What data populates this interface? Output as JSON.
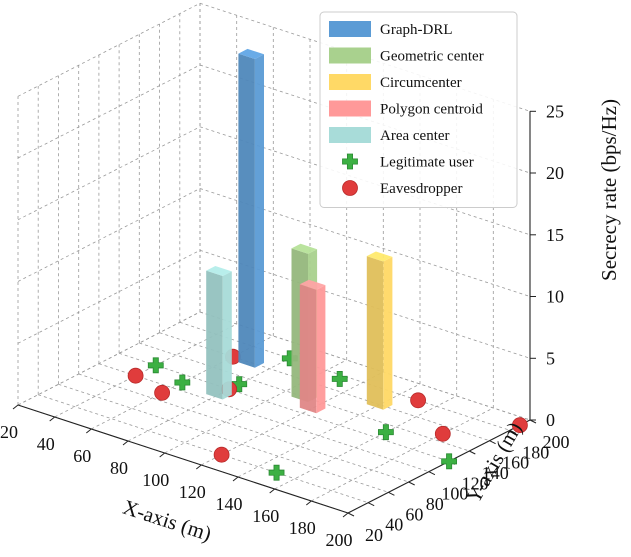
{
  "chart_data": {
    "type": "3d-bar-scatter",
    "xlabel": "X-axis (m)",
    "ylabel": "Y-axis (m)",
    "zlabel": "Secrecy rate (bps/Hz)",
    "xlim": [
      20,
      200
    ],
    "ylim": [
      20,
      200
    ],
    "zlim": [
      0,
      25
    ],
    "x_ticks": [
      20,
      40,
      60,
      80,
      100,
      120,
      140,
      160,
      180,
      200
    ],
    "y_ticks": [
      20,
      40,
      60,
      80,
      100,
      120,
      140,
      160,
      180,
      200
    ],
    "z_ticks": [
      0,
      5,
      10,
      15,
      20,
      25
    ],
    "bars": [
      {
        "name": "Graph-DRL",
        "color": "#5b9bd5",
        "x": 70,
        "y": 160,
        "value": 25
      },
      {
        "name": "Geometric center",
        "color": "#a9d18e",
        "x": 110,
        "y": 140,
        "value": 12
      },
      {
        "name": "Circumcenter",
        "color": "#ffd966",
        "x": 140,
        "y": 160,
        "value": 12
      },
      {
        "name": "Polygon centroid",
        "color": "#ff9999",
        "x": 120,
        "y": 130,
        "value": 10
      },
      {
        "name": "Area center",
        "color": "#a8dcd9",
        "x": 80,
        "y": 110,
        "value": 10
      }
    ],
    "legitimate_users": [
      {
        "x": 80,
        "y": 180
      },
      {
        "x": 110,
        "y": 175
      },
      {
        "x": 40,
        "y": 120
      },
      {
        "x": 60,
        "y": 110
      },
      {
        "x": 80,
        "y": 130
      },
      {
        "x": 160,
        "y": 130
      },
      {
        "x": 200,
        "y": 120
      },
      {
        "x": 150,
        "y": 40
      }
    ],
    "eavesdroppers": [
      {
        "x": 60,
        "y": 160
      },
      {
        "x": 40,
        "y": 100
      },
      {
        "x": 60,
        "y": 90
      },
      {
        "x": 80,
        "y": 120
      },
      {
        "x": 150,
        "y": 180
      },
      {
        "x": 180,
        "y": 150
      },
      {
        "x": 200,
        "y": 190
      },
      {
        "x": 120,
        "y": 40
      }
    ],
    "legend": {
      "placement": "top-right",
      "entries": [
        {
          "label": "Graph-DRL",
          "kind": "bar",
          "color": "#5b9bd5"
        },
        {
          "label": "Geometric center",
          "kind": "bar",
          "color": "#a9d18e"
        },
        {
          "label": "Circumcenter",
          "kind": "bar",
          "color": "#ffd966"
        },
        {
          "label": "Polygon centroid",
          "kind": "bar",
          "color": "#ff9999"
        },
        {
          "label": "Area center",
          "kind": "bar",
          "color": "#a8dcd9"
        },
        {
          "label": "Legitimate user",
          "kind": "plus",
          "color": "#3cb043"
        },
        {
          "label": "Eavesdropper",
          "kind": "circle",
          "color": "#e03c3c"
        }
      ]
    },
    "colors": {
      "user": "#3cb043",
      "eaves": "#e03c3c"
    }
  }
}
